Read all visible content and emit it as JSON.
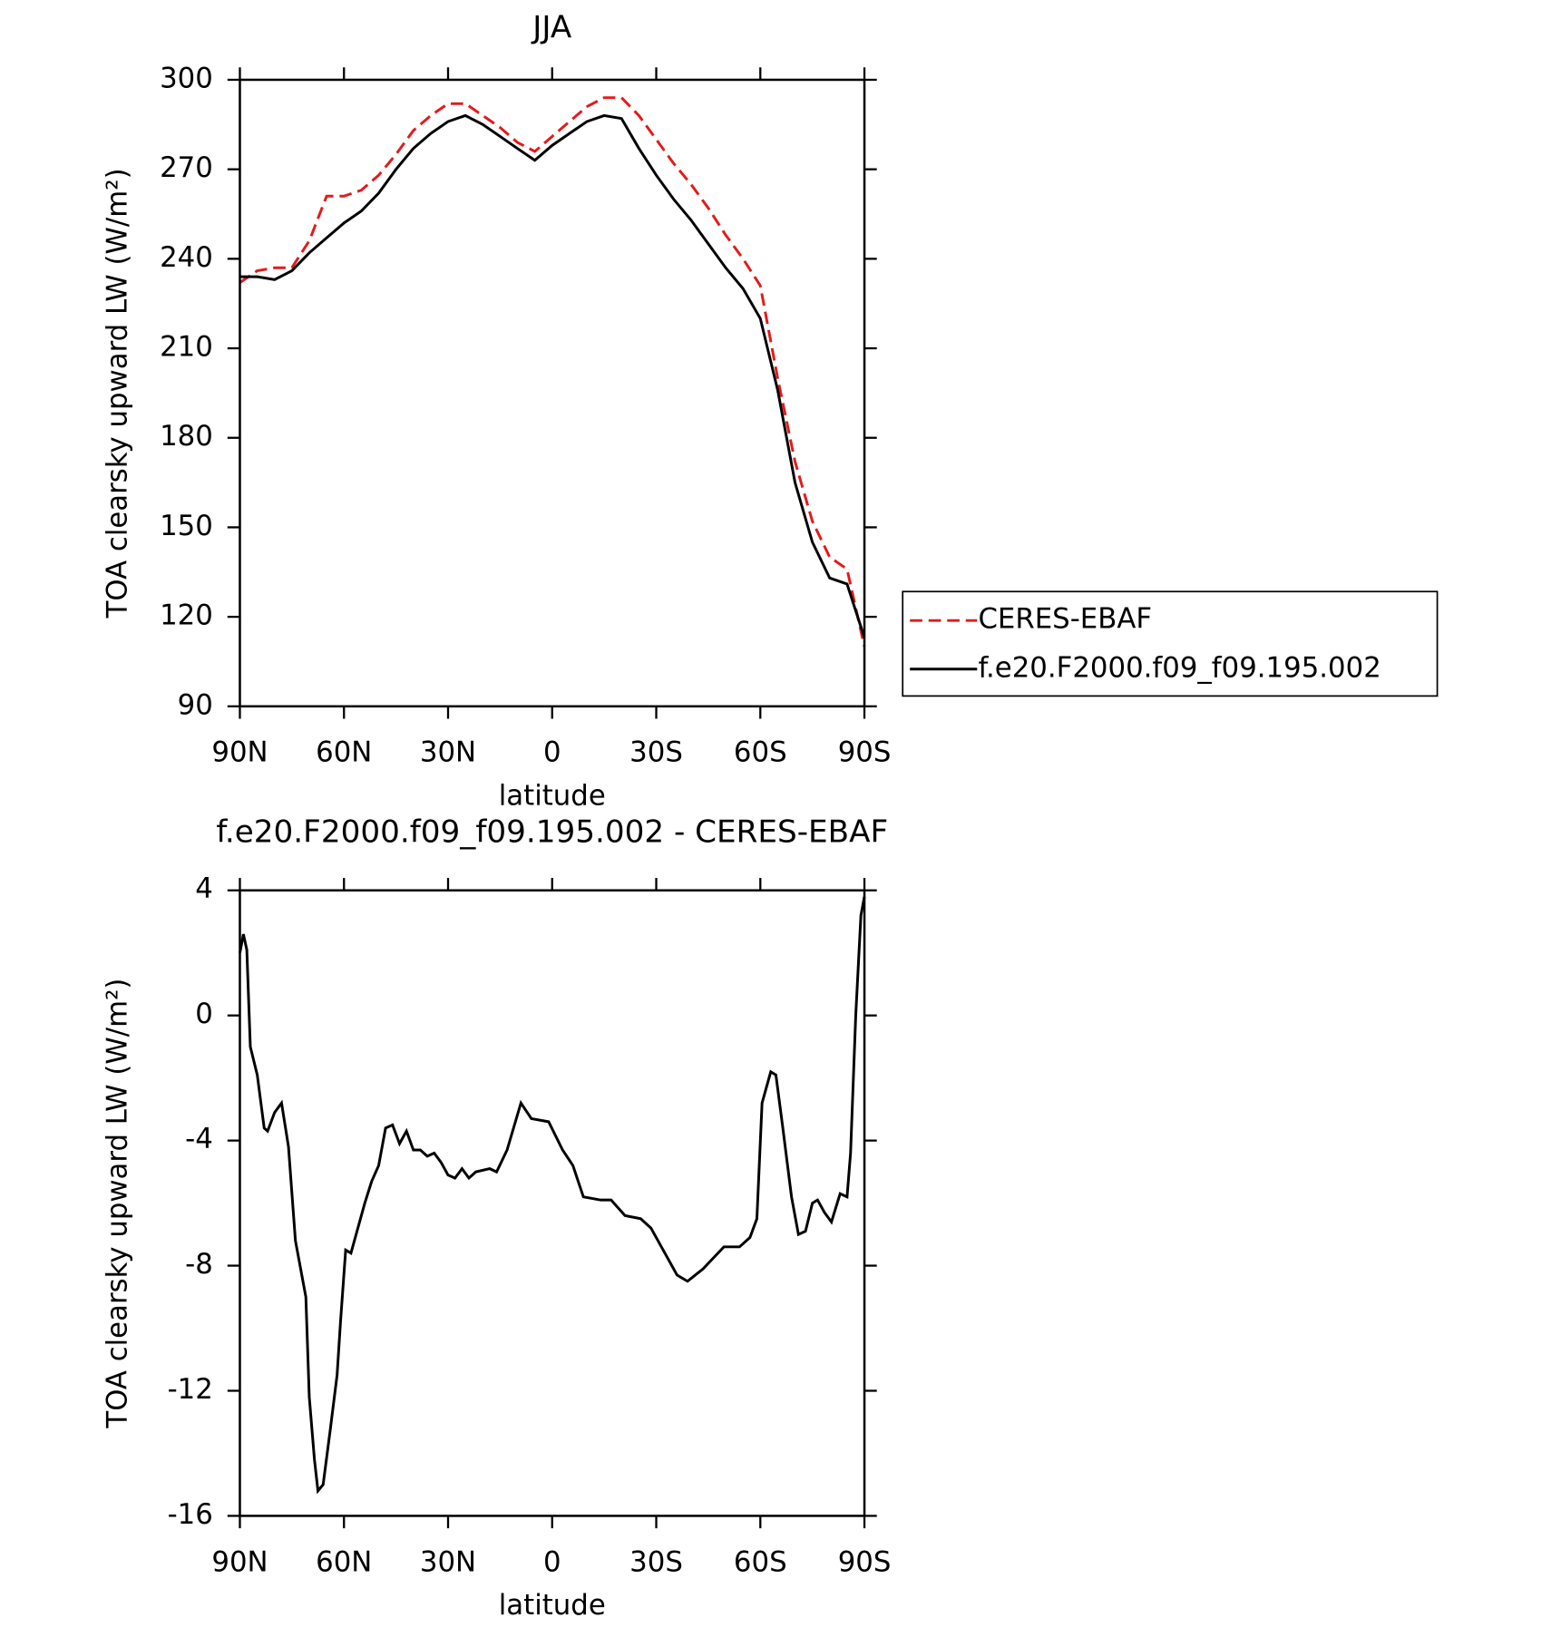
{
  "chart_data": [
    {
      "type": "line",
      "title": "JJA",
      "xlabel": "latitude",
      "ylabel": "TOA clearsky upward LW (W/m²)",
      "x": [
        90,
        85,
        80,
        75,
        70,
        65,
        60,
        55,
        50,
        45,
        40,
        35,
        30,
        25,
        20,
        15,
        10,
        5,
        0,
        -5,
        -10,
        -15,
        -20,
        -25,
        -30,
        -35,
        -40,
        -45,
        -50,
        -55,
        -60,
        -65,
        -70,
        -75,
        -80,
        -85,
        -90
      ],
      "series": [
        {
          "name": "CERES-EBAF",
          "color": "#e41a1c",
          "linestyle": "dashed",
          "values": [
            232,
            236,
            237,
            237,
            246,
            261,
            261,
            263,
            268,
            275,
            283,
            288,
            292,
            292,
            288,
            284,
            279,
            276,
            281,
            286,
            291,
            294,
            294,
            288,
            280,
            272,
            265,
            257,
            248,
            240,
            231,
            200,
            172,
            152,
            140,
            136,
            110
          ]
        },
        {
          "name": "f.e20.F2000.f09_f09.195.002",
          "color": "#000000",
          "linestyle": "solid",
          "values": [
            234,
            234,
            233,
            236,
            242,
            247,
            252,
            256,
            262,
            270,
            277,
            282,
            286,
            288,
            285,
            281,
            277,
            273,
            278,
            282,
            286,
            288,
            287,
            277,
            268,
            260,
            253,
            245,
            237,
            230,
            220,
            196,
            165,
            145,
            133,
            131,
            113
          ]
        }
      ],
      "xlim": [
        90,
        -90
      ],
      "xticks": [
        {
          "value": 90,
          "label": "90N"
        },
        {
          "value": 60,
          "label": "60N"
        },
        {
          "value": 30,
          "label": "30N"
        },
        0,
        {
          "value": -30,
          "label": "30S"
        },
        {
          "value": -60,
          "label": "60S"
        },
        {
          "value": -90,
          "label": "90S"
        }
      ],
      "ylim": [
        90,
        300
      ],
      "yticks": [
        90,
        120,
        150,
        180,
        210,
        240,
        270,
        300
      ],
      "grid": false,
      "legend": "right"
    },
    {
      "type": "line",
      "title": "f.e20.F2000.f09_f09.195.002 - CERES-EBAF",
      "xlabel": "latitude",
      "ylabel": "TOA clearsky upward LW (W/m²)",
      "x": [
        90,
        89,
        88,
        87,
        85,
        83,
        82,
        80,
        78,
        76,
        74,
        71,
        70,
        68.5,
        67.5,
        66,
        64,
        62,
        61,
        59.5,
        58,
        56,
        54,
        52,
        50,
        48,
        46,
        44,
        42,
        40,
        38,
        36,
        34,
        32,
        30,
        28,
        26,
        24,
        22,
        18,
        16,
        13,
        9,
        6,
        1,
        -3,
        -6,
        -9,
        -14,
        -17,
        -21,
        -25.5,
        -28.5,
        -33,
        -36,
        -39,
        -43.5,
        -49.5,
        -54,
        -57,
        -59,
        -60.5,
        -63,
        -64.5,
        -66.5,
        -69,
        -71,
        -73,
        -75,
        -76.5,
        -78.5,
        -80.5,
        -83,
        -85,
        -86,
        -87.5,
        -89,
        -90
      ],
      "values": [
        2.0,
        2.6,
        2.1,
        -1.0,
        -1.9,
        -3.6,
        -3.7,
        -3.1,
        -2.8,
        -4.2,
        -7.2,
        -9.0,
        -12.2,
        -14.2,
        -15.2,
        -15.0,
        -13.3,
        -11.5,
        -9.8,
        -7.5,
        -7.6,
        -6.8,
        -6.0,
        -5.3,
        -4.8,
        -3.6,
        -3.5,
        -4.1,
        -3.7,
        -4.3,
        -4.3,
        -4.5,
        -4.4,
        -4.7,
        -5.1,
        -5.2,
        -4.9,
        -5.2,
        -5.0,
        -4.9,
        -5.0,
        -4.3,
        -2.8,
        -3.3,
        -3.4,
        -4.3,
        -4.8,
        -5.8,
        -5.9,
        -5.9,
        -6.4,
        -6.5,
        -6.8,
        -7.7,
        -8.3,
        -8.5,
        -8.1,
        -7.4,
        -7.4,
        -7.1,
        -6.5,
        -2.8,
        -1.8,
        -1.9,
        -3.6,
        -5.8,
        -7.0,
        -6.9,
        -6.0,
        -5.9,
        -6.3,
        -6.6,
        -5.7,
        -5.8,
        -4.4,
        0,
        3.2,
        3.8
      ],
      "color": "#000000",
      "xlim": [
        90,
        -90
      ],
      "xticks": [
        {
          "value": 90,
          "label": "90N"
        },
        {
          "value": 60,
          "label": "60N"
        },
        {
          "value": 30,
          "label": "30N"
        },
        0,
        {
          "value": -30,
          "label": "30S"
        },
        {
          "value": -60,
          "label": "60S"
        },
        {
          "value": -90,
          "label": "90S"
        }
      ],
      "ylim": [
        -16,
        4
      ],
      "yticks": [
        -16,
        -12,
        -8,
        -4,
        0,
        4
      ],
      "grid": false
    }
  ]
}
